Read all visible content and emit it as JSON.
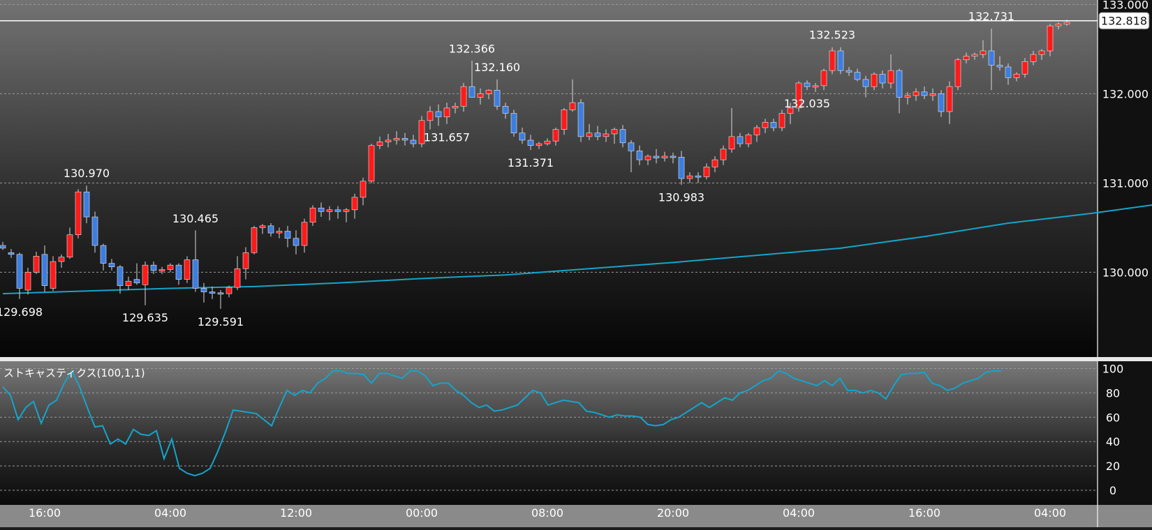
{
  "chart_data": [
    {
      "type": "candlestick",
      "ylim": [
        129.05,
        133.05
      ],
      "y_ticks": [
        "130.000",
        "131.000",
        "132.000",
        "133.000"
      ],
      "x_ticks": [
        "16:00",
        "04:00",
        "12:00",
        "00:00",
        "08:00",
        "20:00",
        "04:00",
        "16:00",
        "04:00"
      ],
      "current_price": "132.818",
      "colors": {
        "up": "#ff1a1a",
        "down": "#3d7de0",
        "moving_average": "#14a5cc",
        "price_line": "#ffffff"
      },
      "annotations": [
        {
          "label": "129.698",
          "value": 129.698,
          "type": "low"
        },
        {
          "label": "130.970",
          "value": 130.97,
          "type": "high"
        },
        {
          "label": "129.635",
          "value": 129.635,
          "type": "low"
        },
        {
          "label": "130.465",
          "value": 130.465,
          "type": "high"
        },
        {
          "label": "129.591",
          "value": 129.591,
          "type": "low"
        },
        {
          "label": "132.366",
          "value": 132.366,
          "type": "high"
        },
        {
          "label": "132.160",
          "value": 132.16,
          "type": "high"
        },
        {
          "label": "131.371",
          "value": 131.371,
          "type": "low"
        },
        {
          "label": "130.983",
          "value": 130.983,
          "type": "low"
        },
        {
          "label": "132.523",
          "value": 132.523,
          "type": "high"
        },
        {
          "label": "131.657",
          "value": 131.657,
          "type": "low"
        },
        {
          "label": "132.731",
          "value": 132.731,
          "type": "high"
        },
        {
          "label": "132.035",
          "value": 132.035,
          "type": "low"
        }
      ],
      "candles": [
        [
          130.3,
          130.34,
          130.25,
          130.27
        ],
        [
          130.22,
          130.26,
          130.16,
          130.2
        ],
        [
          130.2,
          130.22,
          129.7,
          129.82
        ],
        [
          129.8,
          130.05,
          129.75,
          130.0
        ],
        [
          130.0,
          130.23,
          129.98,
          130.18
        ],
        [
          130.2,
          130.3,
          129.78,
          129.85
        ],
        [
          129.82,
          130.18,
          129.79,
          130.12
        ],
        [
          130.12,
          130.2,
          130.05,
          130.17
        ],
        [
          130.17,
          130.5,
          130.15,
          130.42
        ],
        [
          130.42,
          130.93,
          130.38,
          130.9
        ],
        [
          130.9,
          130.97,
          130.55,
          130.62
        ],
        [
          130.62,
          130.68,
          130.22,
          130.3
        ],
        [
          130.3,
          130.32,
          130.02,
          130.1
        ],
        [
          130.1,
          130.15,
          130.02,
          130.06
        ],
        [
          130.06,
          130.08,
          129.76,
          129.85
        ],
        [
          129.85,
          129.95,
          129.8,
          129.9
        ],
        [
          129.92,
          130.1,
          129.86,
          129.88
        ],
        [
          129.86,
          130.12,
          129.63,
          130.08
        ],
        [
          130.08,
          130.12,
          129.98,
          130.02
        ],
        [
          130.02,
          130.06,
          129.98,
          130.03
        ],
        [
          130.03,
          130.1,
          130.0,
          130.08
        ],
        [
          130.08,
          130.1,
          129.86,
          129.92
        ],
        [
          129.92,
          130.18,
          129.88,
          130.14
        ],
        [
          130.14,
          130.47,
          129.78,
          129.82
        ],
        [
          129.82,
          129.88,
          129.66,
          129.78
        ],
        [
          129.78,
          129.84,
          129.7,
          129.77
        ],
        [
          129.77,
          129.8,
          129.59,
          129.76
        ],
        [
          129.76,
          129.85,
          129.72,
          129.83
        ],
        [
          129.83,
          130.18,
          129.8,
          130.04
        ],
        [
          130.04,
          130.28,
          129.92,
          130.22
        ],
        [
          130.22,
          130.52,
          130.2,
          130.5
        ],
        [
          130.5,
          130.54,
          130.43,
          130.52
        ],
        [
          130.52,
          130.55,
          130.4,
          130.44
        ],
        [
          130.44,
          130.5,
          130.38,
          130.46
        ],
        [
          130.46,
          130.52,
          130.28,
          130.38
        ],
        [
          130.38,
          130.47,
          130.2,
          130.3
        ],
        [
          130.3,
          130.6,
          130.22,
          130.56
        ],
        [
          130.56,
          130.75,
          130.52,
          130.72
        ],
        [
          130.72,
          130.78,
          130.62,
          130.68
        ],
        [
          130.68,
          130.74,
          130.58,
          130.7
        ],
        [
          130.7,
          130.74,
          130.6,
          130.68
        ],
        [
          130.68,
          130.72,
          130.56,
          130.7
        ],
        [
          130.7,
          130.88,
          130.6,
          130.84
        ],
        [
          130.84,
          131.06,
          130.75,
          131.02
        ],
        [
          131.02,
          131.44,
          131.0,
          131.42
        ],
        [
          131.42,
          131.52,
          131.38,
          131.46
        ],
        [
          131.46,
          131.55,
          131.4,
          131.48
        ],
        [
          131.48,
          131.58,
          131.43,
          131.5
        ],
        [
          131.5,
          131.56,
          131.42,
          131.48
        ],
        [
          131.48,
          131.54,
          131.4,
          131.44
        ],
        [
          131.44,
          131.75,
          131.4,
          131.7
        ],
        [
          131.7,
          131.86,
          131.6,
          131.8
        ],
        [
          131.8,
          131.88,
          131.64,
          131.74
        ],
        [
          131.74,
          131.9,
          131.66,
          131.84
        ],
        [
          131.84,
          131.9,
          131.78,
          131.86
        ],
        [
          131.86,
          132.12,
          131.8,
          132.08
        ],
        [
          132.08,
          132.37,
          132.0,
          131.96
        ],
        [
          131.96,
          132.06,
          131.88,
          132.0
        ],
        [
          132.0,
          132.05,
          131.94,
          132.04
        ],
        [
          132.04,
          132.16,
          131.82,
          131.86
        ],
        [
          131.86,
          131.9,
          131.72,
          131.78
        ],
        [
          131.78,
          131.82,
          131.52,
          131.56
        ],
        [
          131.56,
          131.62,
          131.44,
          131.48
        ],
        [
          131.48,
          131.54,
          131.37,
          131.42
        ],
        [
          131.42,
          131.46,
          131.38,
          131.44
        ],
        [
          131.44,
          131.5,
          131.42,
          131.47
        ],
        [
          131.47,
          131.62,
          131.42,
          131.6
        ],
        [
          131.6,
          131.84,
          131.54,
          131.82
        ],
        [
          131.82,
          132.16,
          131.8,
          131.9
        ],
        [
          131.9,
          131.94,
          131.46,
          131.52
        ],
        [
          131.52,
          131.66,
          131.48,
          131.56
        ],
        [
          131.56,
          131.64,
          131.48,
          131.52
        ],
        [
          131.52,
          131.6,
          131.46,
          131.55
        ],
        [
          131.55,
          131.62,
          131.44,
          131.6
        ],
        [
          131.6,
          131.65,
          131.4,
          131.45
        ],
        [
          131.45,
          131.48,
          131.12,
          131.36
        ],
        [
          131.36,
          131.42,
          131.2,
          131.26
        ],
        [
          131.26,
          131.32,
          131.2,
          131.3
        ],
        [
          131.3,
          131.38,
          131.22,
          131.28
        ],
        [
          131.28,
          131.35,
          131.24,
          131.3
        ],
        [
          131.3,
          131.34,
          131.22,
          131.29
        ],
        [
          131.29,
          131.36,
          130.98,
          131.05
        ],
        [
          131.05,
          131.12,
          131.0,
          131.08
        ],
        [
          131.08,
          131.12,
          131.0,
          131.07
        ],
        [
          131.07,
          131.22,
          131.04,
          131.18
        ],
        [
          131.18,
          131.3,
          131.12,
          131.26
        ],
        [
          131.26,
          131.42,
          131.2,
          131.38
        ],
        [
          131.38,
          131.84,
          131.34,
          131.52
        ],
        [
          131.52,
          131.56,
          131.4,
          131.44
        ],
        [
          131.44,
          131.56,
          131.4,
          131.54
        ],
        [
          131.54,
          131.65,
          131.46,
          131.62
        ],
        [
          131.62,
          131.72,
          131.56,
          131.68
        ],
        [
          131.68,
          131.72,
          131.58,
          131.62
        ],
        [
          131.62,
          131.82,
          131.58,
          131.78
        ],
        [
          131.78,
          131.9,
          131.66,
          131.84
        ],
        [
          131.84,
          132.14,
          131.8,
          132.12
        ],
        [
          132.12,
          132.15,
          132.04,
          132.08
        ],
        [
          132.08,
          132.12,
          132.02,
          132.09
        ],
        [
          132.09,
          132.28,
          132.04,
          132.26
        ],
        [
          132.26,
          132.52,
          132.22,
          132.48
        ],
        [
          132.48,
          132.52,
          132.22,
          132.26
        ],
        [
          132.26,
          132.3,
          132.2,
          132.24
        ],
        [
          132.24,
          132.28,
          132.14,
          132.16
        ],
        [
          132.16,
          132.2,
          131.96,
          132.08
        ],
        [
          132.08,
          132.24,
          132.04,
          132.22
        ],
        [
          132.22,
          132.26,
          132.06,
          132.12
        ],
        [
          132.12,
          132.44,
          132.06,
          132.26
        ],
        [
          132.26,
          132.28,
          131.78,
          131.96
        ],
        [
          131.96,
          132.02,
          131.88,
          131.98
        ],
        [
          131.98,
          132.06,
          131.92,
          132.02
        ],
        [
          132.02,
          132.08,
          131.94,
          131.98
        ],
        [
          131.98,
          132.06,
          131.92,
          132.0
        ],
        [
          132.0,
          132.04,
          131.74,
          131.8
        ],
        [
          131.8,
          132.14,
          131.66,
          132.08
        ],
        [
          132.08,
          132.4,
          132.04,
          132.38
        ],
        [
          132.38,
          132.46,
          132.34,
          132.42
        ],
        [
          132.42,
          132.46,
          132.38,
          132.44
        ],
        [
          132.44,
          132.6,
          132.4,
          132.48
        ],
        [
          132.48,
          132.73,
          132.04,
          132.32
        ],
        [
          132.32,
          132.42,
          132.26,
          132.3
        ],
        [
          132.3,
          132.34,
          132.1,
          132.18
        ],
        [
          132.18,
          132.24,
          132.14,
          132.22
        ],
        [
          132.22,
          132.4,
          132.18,
          132.36
        ],
        [
          132.36,
          132.48,
          132.32,
          132.44
        ],
        [
          132.44,
          132.5,
          132.38,
          132.48
        ],
        [
          132.48,
          132.78,
          132.42,
          132.76
        ],
        [
          132.76,
          132.8,
          132.72,
          132.78
        ],
        [
          132.78,
          132.83,
          132.76,
          132.8
        ]
      ],
      "moving_average": [
        [
          0,
          129.76
        ],
        [
          100,
          129.79
        ],
        [
          200,
          129.82
        ],
        [
          300,
          129.84
        ],
        [
          400,
          129.88
        ],
        [
          500,
          129.93
        ],
        [
          600,
          129.97
        ],
        [
          700,
          130.04
        ],
        [
          800,
          130.11
        ],
        [
          900,
          130.19
        ],
        [
          1000,
          130.27
        ],
        [
          1100,
          130.4
        ],
        [
          1200,
          130.55
        ],
        [
          1300,
          130.66
        ],
        [
          1400,
          130.79
        ],
        [
          1460,
          130.86
        ]
      ]
    },
    {
      "type": "line",
      "name": "ストキャスティクス(100,1,1)",
      "ylim": [
        -12,
        106
      ],
      "y_ticks": [
        "0",
        "20",
        "40",
        "60",
        "80",
        "100"
      ],
      "series": [
        {
          "color": "#14a5cc",
          "values": [
            85,
            78,
            58,
            68,
            73,
            55,
            70,
            74,
            88,
            98,
            85,
            68,
            52,
            53,
            38,
            42,
            38,
            50,
            46,
            45,
            49,
            26,
            42,
            18,
            14,
            12,
            14,
            18,
            32,
            48,
            66,
            65,
            64,
            63,
            58,
            53,
            68,
            82,
            78,
            82,
            80,
            88,
            92,
            98,
            98,
            96,
            96,
            95,
            88,
            96,
            96,
            94,
            92,
            98,
            98,
            94,
            86,
            88,
            88,
            82,
            78,
            72,
            68,
            70,
            65,
            66,
            68,
            70,
            76,
            82,
            80,
            70,
            72,
            74,
            73,
            72,
            65,
            64,
            62,
            60,
            62,
            61,
            61,
            60,
            54,
            53,
            54,
            58,
            60,
            64,
            68,
            72,
            68,
            72,
            76,
            74,
            80,
            82,
            86,
            90,
            92,
            98,
            96,
            92,
            90,
            88,
            86,
            90,
            86,
            92,
            82,
            82,
            80,
            82,
            80,
            75,
            86,
            95,
            96,
            96,
            97,
            88,
            86,
            82,
            84,
            88,
            90,
            92,
            97,
            98,
            98
          ]
        }
      ]
    }
  ]
}
